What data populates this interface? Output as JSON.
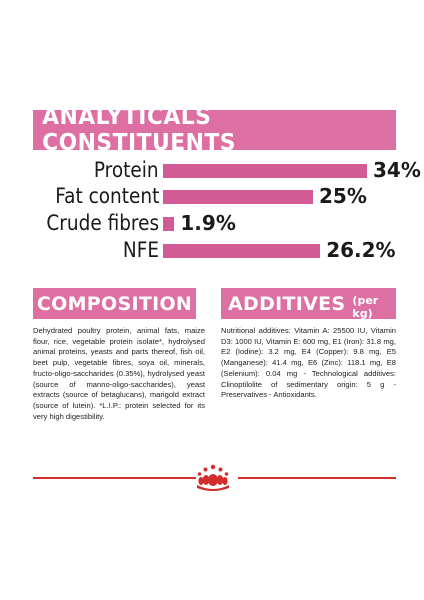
{
  "analytics": {
    "title": "ANALYTICALS CONSTITUENTS",
    "rows": [
      {
        "label": "Protein",
        "value": "34%",
        "percent": 34
      },
      {
        "label": "Fat content",
        "value": "25%",
        "percent": 25
      },
      {
        "label": "Crude fibres",
        "value": "1.9%",
        "percent": 1.9
      },
      {
        "label": "NFE",
        "value": "26.2%",
        "percent": 26.2
      }
    ]
  },
  "composition": {
    "title": "COMPOSITION",
    "text": "Dehydrated poultry protein, animal fats, maize flour, rice, vegetable protein isolate*, hydrolysed animal proteins, yeasts and parts thereof, fish oil, beet pulp, vegetable fibres, soya oil, minerals, fructo-oligo-saccharides (0.35%), hydrolysed yeast (source of manno-oligo-saccharides), yeast extracts (source of betaglucans), marigold extract (source of lutein). *L.I.P.: protein selected for its very high digestibility."
  },
  "additives": {
    "title": "ADDITIVES",
    "subtitle": "(per kg)",
    "text": "Nutritional additives: Vitamin A: 25500 IU, Vitamin D3: 1000 IU, Vitamin E: 600 mg, E1 (Iron): 31.8 mg, E2 (Iodine): 3.2 mg, E4 (Copper): 9.8 mg, E5 (Manganese): 41.4 mg, E6 (Zinc): 118.1 mg, E8 (Selenium): 0.04 mg - Technological additives: Clinoptilolite of sedimentary origin: 5 g - Preservatives - Antioxidants."
  },
  "colors": {
    "banner": "#dd6fa2",
    "bar": "#d35b95",
    "divider": "#d22e2e"
  },
  "logo": {
    "icon": "royal-canin-crown-icon"
  }
}
